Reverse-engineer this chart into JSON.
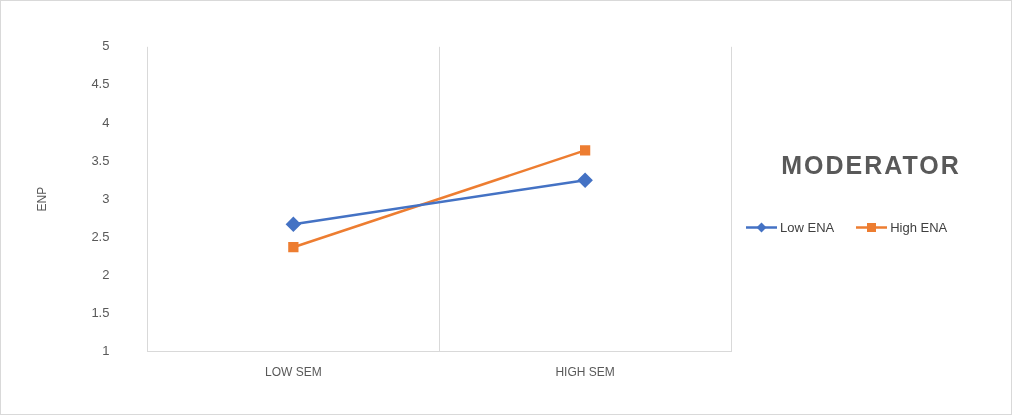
{
  "chart_data": {
    "type": "line",
    "ylabel": "ENP",
    "legend_title": "MODERATOR",
    "legend": "right",
    "grid": "x",
    "categories": [
      "LOW SEM",
      "HIGH SEM"
    ],
    "ylim": [
      1,
      5
    ],
    "yticks": [
      1,
      1.5,
      2,
      2.5,
      3,
      3.5,
      4,
      4.5,
      5
    ],
    "series": [
      {
        "name": "Low ENA",
        "color": "#4472c4",
        "marker": "diamond",
        "values": [
          2.67,
          3.25
        ]
      },
      {
        "name": "High ENA",
        "color": "#ed7d31",
        "marker": "square",
        "values": [
          2.37,
          3.64
        ]
      }
    ]
  }
}
